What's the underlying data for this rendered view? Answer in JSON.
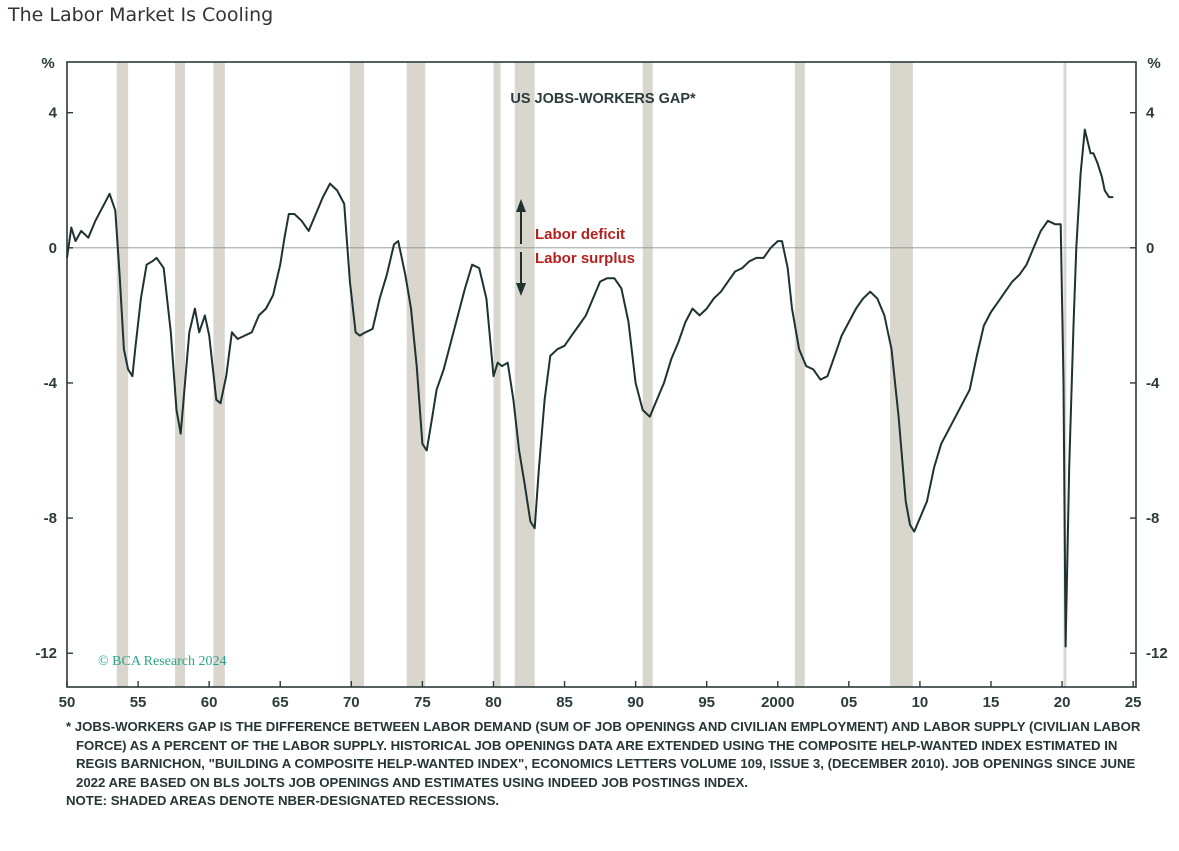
{
  "page_title": "The Labor Market Is Cooling",
  "colors": {
    "line": "#1e3232",
    "recession": "#d8d6cd",
    "annotation": "#b22222",
    "copyright": "#2aa588",
    "axis": "#2b3a3a"
  },
  "chart_data": {
    "type": "line",
    "title": "US JOBS-WORKERS GAP*",
    "ylabel_left": "%",
    "ylabel_right": "%",
    "xlim": [
      1950,
      2025.2
    ],
    "ylim": [
      -13,
      5.5
    ],
    "x_ticks": [
      1950,
      1955,
      1960,
      1965,
      1970,
      1975,
      1980,
      1985,
      1990,
      1995,
      2000,
      2005,
      2010,
      2015,
      2020,
      2025
    ],
    "x_tick_labels": [
      "50",
      "55",
      "60",
      "65",
      "70",
      "75",
      "80",
      "85",
      "90",
      "95",
      "2000",
      "05",
      "10",
      "15",
      "20",
      "25"
    ],
    "y_ticks": [
      4,
      0,
      -4,
      -8,
      -12
    ],
    "y_tick_labels": [
      "4",
      "0",
      "-4",
      "-8",
      "-12"
    ],
    "zero_line": 0,
    "grid": false,
    "annotations": {
      "up_label": "Labor deficit",
      "down_label": "Labor surplus",
      "copyright": "© BCA Research 2024"
    },
    "recessions": [
      [
        1953.5,
        1954.3
      ],
      [
        1957.6,
        1958.3
      ],
      [
        1960.3,
        1961.1
      ],
      [
        1969.9,
        1970.9
      ],
      [
        1973.9,
        1975.2
      ],
      [
        1980.0,
        1980.5
      ],
      [
        1981.5,
        1982.9
      ],
      [
        1990.5,
        1991.2
      ],
      [
        2001.2,
        2001.9
      ],
      [
        2007.9,
        2009.5
      ],
      [
        2020.1,
        2020.3
      ]
    ],
    "series": [
      {
        "x": [
          1950.0,
          1950.3,
          1950.6,
          1951.0,
          1951.5,
          1952.0,
          1952.5,
          1953.0,
          1953.4,
          1953.7,
          1954.0,
          1954.3,
          1954.6,
          1954.8,
          1955.2,
          1955.6,
          1956.0,
          1956.3,
          1956.8,
          1957.3,
          1957.7,
          1958.0,
          1958.3,
          1958.6,
          1959.0,
          1959.3,
          1959.7,
          1960.0,
          1960.5,
          1960.8,
          1961.2,
          1961.6,
          1962.0,
          1962.5,
          1963.0,
          1963.5,
          1964.0,
          1964.5,
          1965.0,
          1965.3,
          1965.6,
          1966.0,
          1966.5,
          1967.0,
          1967.5,
          1968.0,
          1968.5,
          1969.0,
          1969.5,
          1969.9,
          1970.3,
          1970.6,
          1971.0,
          1971.5,
          1972.0,
          1972.5,
          1973.0,
          1973.3,
          1973.8,
          1974.2,
          1974.6,
          1975.0,
          1975.3,
          1975.7,
          1976.0,
          1976.5,
          1977.0,
          1977.5,
          1978.0,
          1978.5,
          1979.0,
          1979.5,
          1980.0,
          1980.3,
          1980.6,
          1981.0,
          1981.4,
          1981.8,
          1982.2,
          1982.6,
          1982.9,
          1983.2,
          1983.6,
          1984.0,
          1984.5,
          1985.0,
          1985.5,
          1986.0,
          1986.5,
          1987.0,
          1987.5,
          1988.0,
          1988.5,
          1989.0,
          1989.5,
          1990.0,
          1990.5,
          1991.0,
          1991.5,
          1992.0,
          1992.5,
          1993.0,
          1993.5,
          1994.0,
          1994.5,
          1995.0,
          1995.5,
          1996.0,
          1996.5,
          1997.0,
          1997.5,
          1998.0,
          1998.5,
          1999.0,
          1999.5,
          2000.0,
          2000.3,
          2000.7,
          2001.0,
          2001.5,
          2002.0,
          2002.5,
          2003.0,
          2003.5,
          2004.0,
          2004.5,
          2005.0,
          2005.5,
          2006.0,
          2006.5,
          2007.0,
          2007.5,
          2008.0,
          2008.5,
          2009.0,
          2009.3,
          2009.6,
          2010.0,
          2010.5,
          2011.0,
          2011.5,
          2012.0,
          2012.5,
          2013.0,
          2013.5,
          2014.0,
          2014.5,
          2015.0,
          2015.5,
          2016.0,
          2016.5,
          2017.0,
          2017.5,
          2018.0,
          2018.5,
          2019.0,
          2019.5,
          2019.9,
          2020.1,
          2020.25,
          2020.5,
          2020.8,
          2021.0,
          2021.3,
          2021.6,
          2022.0,
          2022.2,
          2022.5,
          2022.8,
          2023.0,
          2023.3,
          2023.6
        ],
        "values": [
          -0.3,
          0.6,
          0.2,
          0.5,
          0.3,
          0.8,
          1.2,
          1.6,
          1.1,
          -0.8,
          -3.0,
          -3.6,
          -3.8,
          -3.0,
          -1.5,
          -0.5,
          -0.4,
          -0.3,
          -0.6,
          -2.5,
          -4.8,
          -5.5,
          -4.0,
          -2.5,
          -1.8,
          -2.5,
          -2.0,
          -2.6,
          -4.5,
          -4.6,
          -3.8,
          -2.5,
          -2.7,
          -2.6,
          -2.5,
          -2.0,
          -1.8,
          -1.4,
          -0.5,
          0.3,
          1.0,
          1.0,
          0.8,
          0.5,
          1.0,
          1.5,
          1.9,
          1.7,
          1.3,
          -1.0,
          -2.5,
          -2.6,
          -2.5,
          -2.4,
          -1.5,
          -0.8,
          0.1,
          0.2,
          -0.8,
          -1.8,
          -3.5,
          -5.8,
          -6.0,
          -5.0,
          -4.2,
          -3.6,
          -2.8,
          -2.0,
          -1.2,
          -0.5,
          -0.6,
          -1.5,
          -3.8,
          -3.4,
          -3.5,
          -3.4,
          -4.5,
          -6.0,
          -7.0,
          -8.1,
          -8.3,
          -6.5,
          -4.5,
          -3.2,
          -3.0,
          -2.9,
          -2.6,
          -2.3,
          -2.0,
          -1.5,
          -1.0,
          -0.9,
          -0.9,
          -1.2,
          -2.2,
          -4.0,
          -4.8,
          -5.0,
          -4.5,
          -4.0,
          -3.3,
          -2.8,
          -2.2,
          -1.8,
          -2.0,
          -1.8,
          -1.5,
          -1.3,
          -1.0,
          -0.7,
          -0.6,
          -0.4,
          -0.3,
          -0.3,
          0.0,
          0.2,
          0.2,
          -0.6,
          -1.8,
          -3.0,
          -3.5,
          -3.6,
          -3.9,
          -3.8,
          -3.2,
          -2.6,
          -2.2,
          -1.8,
          -1.5,
          -1.3,
          -1.5,
          -2.0,
          -3.0,
          -5.0,
          -7.5,
          -8.2,
          -8.4,
          -8.0,
          -7.5,
          -6.5,
          -5.8,
          -5.4,
          -5.0,
          -4.6,
          -4.2,
          -3.2,
          -2.3,
          -1.9,
          -1.6,
          -1.3,
          -1.0,
          -0.8,
          -0.5,
          0.0,
          0.5,
          0.8,
          0.7,
          0.7,
          -4.0,
          -11.8,
          -6.5,
          -2.3,
          0.0,
          2.2,
          3.5,
          2.8,
          2.8,
          2.5,
          2.1,
          1.7,
          1.5,
          1.5
        ]
      }
    ]
  },
  "footnotes": {
    "definition": "* JOBS-WORKERS GAP IS THE DIFFERENCE BETWEEN LABOR DEMAND (SUM OF JOB OPENINGS AND CIVILIAN EMPLOYMENT) AND LABOR SUPPLY (CIVILIAN LABOR FORCE) AS A PERCENT OF THE LABOR SUPPLY. HISTORICAL JOB OPENINGS DATA ARE EXTENDED USING THE COMPOSITE HELP-WANTED INDEX ESTIMATED IN REGIS BARNICHON, \"BUILDING A COMPOSITE HELP-WANTED INDEX\", ECONOMICS LETTERS VOLUME 109, ISSUE 3, (DECEMBER 2010). JOB OPENINGS SINCE JUNE 2022 ARE BASED ON BLS JOLTS JOB OPENINGS AND ESTIMATES USING INDEED JOB POSTINGS INDEX.",
    "note": "NOTE: SHADED AREAS DENOTE NBER-DESIGNATED RECESSIONS."
  }
}
